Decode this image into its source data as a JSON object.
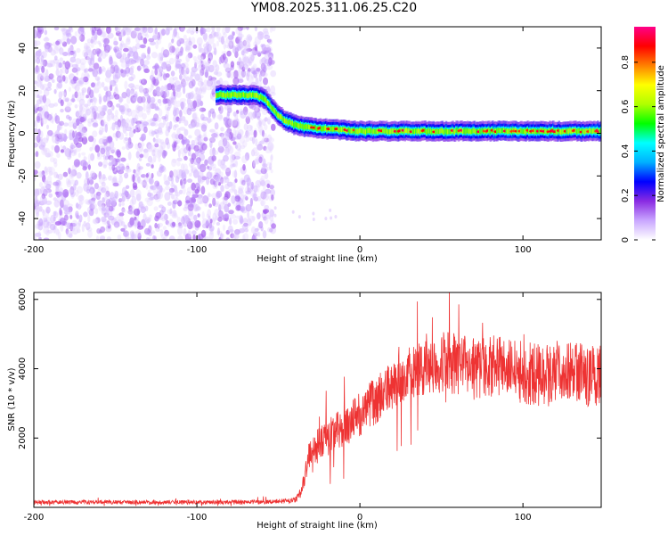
{
  "title": "YM08.2025.311.06.25.C20",
  "chart_data": [
    {
      "type": "heatmap",
      "name": "spectrogram",
      "xlabel": "Height of straight line (km)",
      "ylabel": "Frequency (Hz)",
      "xlim": [
        -200,
        148
      ],
      "ylim": [
        -50,
        50
      ],
      "xticks": [
        -200,
        -100,
        0,
        100
      ],
      "yticks": [
        -40,
        -20,
        0,
        20,
        40
      ],
      "colorbar": {
        "label": "Normalized spectral amplitude",
        "range": [
          0,
          0.96
        ],
        "ticks": [
          0,
          0.2,
          0.4,
          0.6,
          0.8
        ]
      },
      "ridge": {
        "x": [
          -88,
          -80,
          -72,
          -64,
          -58,
          -52,
          -46,
          -40,
          -34,
          -28,
          -20,
          -10,
          0,
          20,
          60,
          100,
          148
        ],
        "freq_hz": [
          18,
          18,
          18,
          18,
          16,
          10,
          6,
          4,
          3,
          2.5,
          2,
          1.5,
          1,
          1,
          1,
          1,
          1
        ]
      },
      "noise_region": {
        "x": [
          -200,
          -53
        ],
        "freq_hz": [
          -50,
          50
        ],
        "amplitude": [
          0.05,
          0.35
        ]
      }
    },
    {
      "type": "line",
      "name": "snr",
      "xlabel": "Height of straight line (km)",
      "ylabel": "SNR (10 * v/v)",
      "xlim": [
        -200,
        148
      ],
      "ylim": [
        0,
        6200
      ],
      "xticks": [
        -200,
        -100,
        0,
        100
      ],
      "yticks": [
        2000,
        4000,
        6000
      ],
      "color": "#ee3333",
      "series": [
        {
          "name": "SNR",
          "x": [
            -200,
            -150,
            -100,
            -60,
            -40,
            -36,
            -34,
            -32,
            -30,
            -25,
            -20,
            -15,
            -10,
            -5,
            0,
            5,
            10,
            15,
            20,
            25,
            30,
            40,
            50,
            60,
            70,
            80,
            90,
            100,
            110,
            120,
            130,
            140,
            148
          ],
          "values": [
            150,
            150,
            150,
            150,
            200,
            450,
            900,
            1400,
            1600,
            1800,
            2000,
            2200,
            2300,
            2500,
            2700,
            2900,
            3100,
            3300,
            3500,
            3700,
            3900,
            4000,
            4200,
            4100,
            4000,
            4100,
            4000,
            3900,
            3800,
            3900,
            4000,
            3800,
            3800
          ],
          "spread": [
            60,
            60,
            60,
            60,
            80,
            150,
            300,
            400,
            450,
            500,
            550,
            550,
            600,
            600,
            650,
            650,
            700,
            700,
            700,
            750,
            750,
            800,
            900,
            900,
            900,
            900,
            900,
            900,
            900,
            900,
            900,
            900,
            900
          ]
        }
      ]
    }
  ],
  "colors": {
    "colorbar_stops": [
      "#ffffff",
      "#c9a6ff",
      "#8a2be2",
      "#0000ff",
      "#00b0ff",
      "#00ffff",
      "#00ff00",
      "#b0ff00",
      "#ffff00",
      "#ff8000",
      "#ff0000",
      "#ff0088"
    ]
  }
}
